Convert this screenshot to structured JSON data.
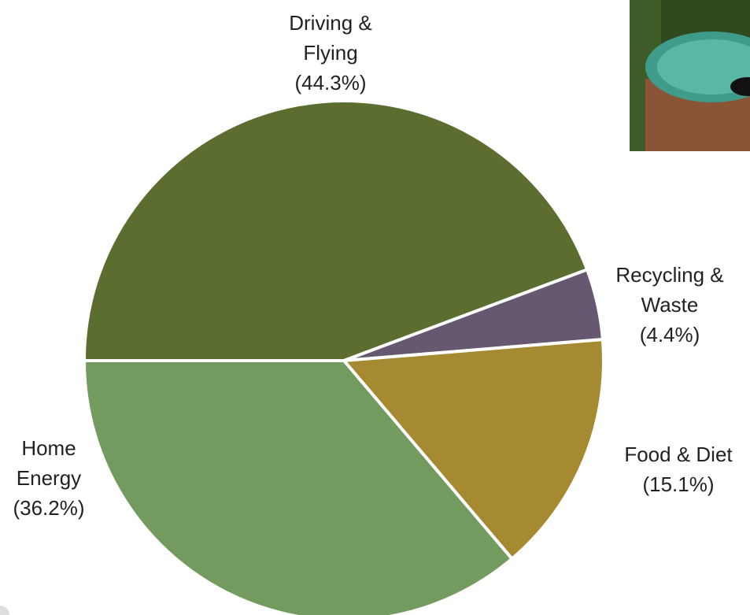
{
  "chart_data": {
    "type": "pie",
    "categories": [
      "Driving & Flying",
      "Recycling & Waste",
      "Food & Diet",
      "Home Energy"
    ],
    "values": [
      44.3,
      4.4,
      15.1,
      36.2
    ],
    "value_labels": [
      "(44.3%)",
      "(4.4%)",
      "(15.1%)",
      "(36.2%)"
    ],
    "colors": [
      "#5b6e2f",
      "#675872",
      "#a68a31",
      "#739b5f"
    ]
  }
}
